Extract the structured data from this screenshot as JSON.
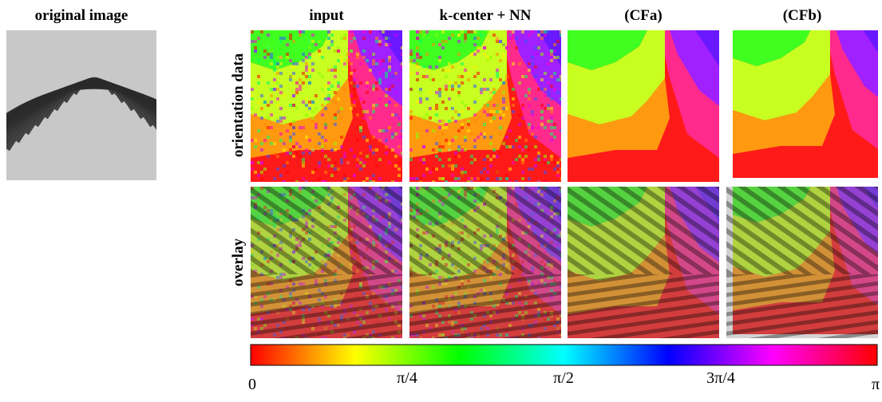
{
  "original_title": "original image",
  "column_titles": [
    "input",
    "k-center + NN",
    "(CFa)",
    "(CFb)"
  ],
  "row_labels": [
    "orientation data",
    "overlay"
  ],
  "colorbar_ticks": [
    "0",
    "π/4",
    "π/2",
    "3π/4",
    "π"
  ]
}
